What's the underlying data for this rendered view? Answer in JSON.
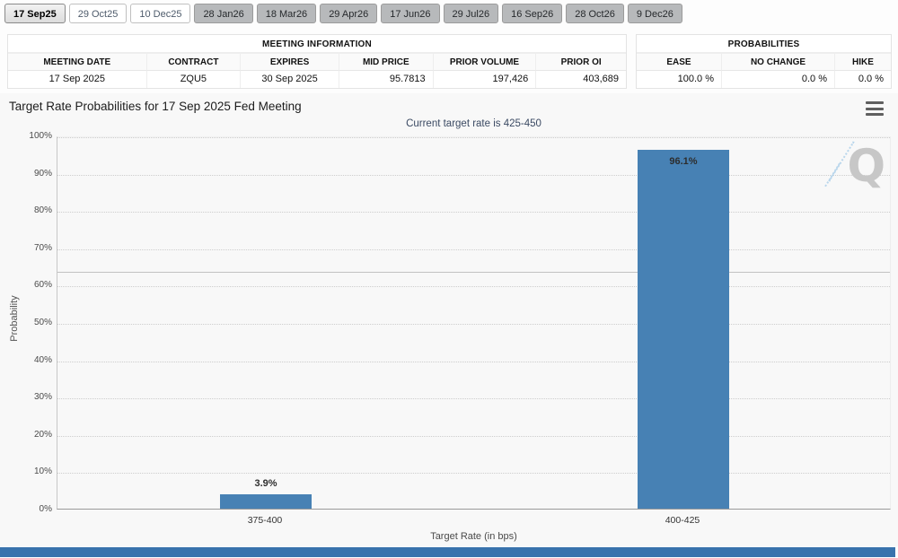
{
  "tabs": [
    {
      "label": "17 Sep25",
      "state": "selected"
    },
    {
      "label": "29 Oct25",
      "state": "open"
    },
    {
      "label": "10 Dec25",
      "state": "open"
    },
    {
      "label": "28 Jan26",
      "state": "inactive"
    },
    {
      "label": "18 Mar26",
      "state": "inactive"
    },
    {
      "label": "29 Apr26",
      "state": "inactive"
    },
    {
      "label": "17 Jun26",
      "state": "inactive"
    },
    {
      "label": "29 Jul26",
      "state": "inactive"
    },
    {
      "label": "16 Sep26",
      "state": "inactive"
    },
    {
      "label": "28 Oct26",
      "state": "inactive"
    },
    {
      "label": "9 Dec26",
      "state": "inactive"
    }
  ],
  "meeting_information": {
    "title": "MEETING INFORMATION",
    "columns": [
      "MEETING DATE",
      "CONTRACT",
      "EXPIRES",
      "MID PRICE",
      "PRIOR VOLUME",
      "PRIOR OI"
    ],
    "row": [
      "17 Sep 2025",
      "ZQU5",
      "30 Sep 2025",
      "95.7813",
      "197,426",
      "403,689"
    ]
  },
  "probabilities": {
    "title": "PROBABILITIES",
    "columns": [
      "EASE",
      "NO CHANGE",
      "HIKE"
    ],
    "row": [
      "100.0 %",
      "0.0 %",
      "0.0 %"
    ]
  },
  "chart_data": {
    "type": "bar",
    "title": "Target Rate Probabilities for 17 Sep 2025 Fed Meeting",
    "subtitle": "Current target rate is 425-450",
    "categories": [
      "375-400",
      "400-425"
    ],
    "values": [
      3.9,
      96.1
    ],
    "bar_labels": [
      "3.9%",
      "96.1%"
    ],
    "xlabel": "Target Rate (in bps)",
    "ylabel": "Probability",
    "ylim": [
      0,
      100
    ],
    "ytick_labels": [
      "0%",
      "10%",
      "20%",
      "30%",
      "40%",
      "50%",
      "60%",
      "70%",
      "80%",
      "90%",
      "100%"
    ],
    "grid": "dotted-horizontal",
    "legend": "none",
    "bar_color": "#4781b4",
    "reference_line_pct": 64
  },
  "watermark": "Q",
  "colors": {
    "footer": "#3973ad",
    "accent": "#4781b4"
  }
}
